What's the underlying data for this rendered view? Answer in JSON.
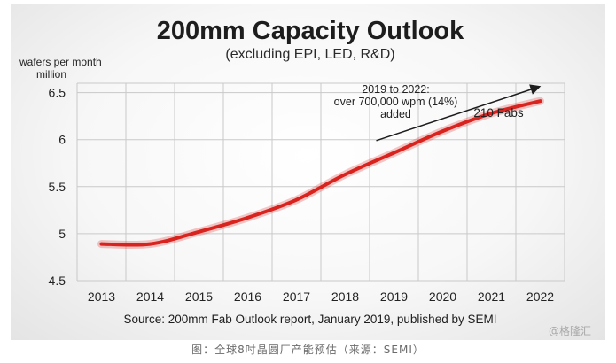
{
  "chart_data": {
    "type": "line",
    "title": "200mm Capacity Outlook",
    "subtitle": "(excluding EPI, LED, R&D)",
    "ylabel": "wafers per month\nmillion",
    "xlabel": "",
    "categories": [
      "2013",
      "2014",
      "2015",
      "2016",
      "2017",
      "2018",
      "2019",
      "2020",
      "2021",
      "2022"
    ],
    "y_ticks": [
      "4.5",
      "5",
      "5.5",
      "6",
      "6.5"
    ],
    "ylim": [
      4.5,
      6.6
    ],
    "grid": true,
    "series": [
      {
        "values": [
          4.89,
          4.89,
          5.02,
          5.17,
          5.36,
          5.63,
          5.86,
          6.09,
          6.28,
          6.41
        ]
      }
    ],
    "annotations": {
      "growth": [
        "2019 to 2022:",
        "over 700,000 wpm (14%)",
        "added"
      ],
      "end_label": "210 Fabs"
    },
    "source": "Source: 200mm Fab Outlook report, January 2019, published by SEMI",
    "colors": {
      "line": "#d8231e",
      "grid": "#c9c9c9",
      "text": "#222222"
    }
  },
  "caption": "图：全球8吋晶圆厂产能预估（来源：SEMI）",
  "watermark": "@格隆汇"
}
